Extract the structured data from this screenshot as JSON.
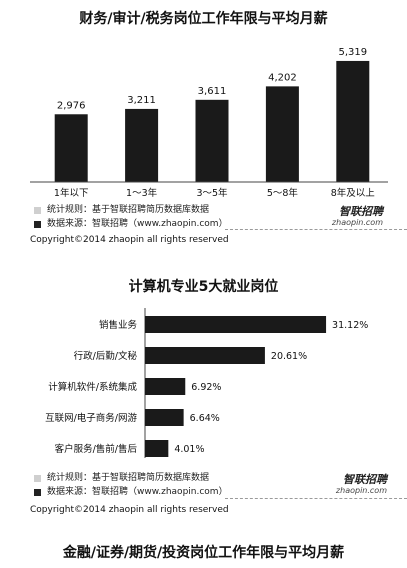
{
  "chart_data": [
    {
      "type": "bar",
      "title": "财务/审计/税务岗位工作年限与平均月薪",
      "categories": [
        "1年以下",
        "1～3年",
        "3～5年",
        "5～8年",
        "8年及以上"
      ],
      "values": [
        2976,
        3211,
        3611,
        4202,
        5319
      ],
      "value_labels": [
        "2,976",
        "3,211",
        "3,611",
        "4,202",
        "5,319"
      ],
      "ylim": [
        0,
        5800
      ],
      "grid": false,
      "bar_color": "#1a1a1a"
    },
    {
      "type": "bar",
      "orientation": "horizontal",
      "title": "计算机专业5大就业岗位",
      "categories": [
        "销售业务",
        "行政/后勤/文秘",
        "计算机软件/系统集成",
        "互联网/电子商务/网游",
        "客户服务/售前/售后"
      ],
      "values": [
        31.12,
        20.61,
        6.92,
        6.64,
        4.01
      ],
      "value_labels": [
        "31.12%",
        "20.61%",
        "6.92%",
        "6.64%",
        "4.01%"
      ],
      "xlim": [
        0,
        33
      ],
      "grid": false,
      "bar_color": "#1a1a1a"
    }
  ],
  "section1": {
    "note_rule": "统计规则：基于智联招聘简历数据库数据",
    "note_source": "数据来源：智联招聘（www.zhaopin.com）",
    "copyright": "Copyright©2014 zhaopin all rights reserved",
    "brand": "智联招聘",
    "brand_sub": "zhaopin.com"
  },
  "section2": {
    "note_rule": "统计规则：基于智联招聘简历数据库数据",
    "note_source": "数据来源：智联招聘（www.zhaopin.com）",
    "copyright": "Copyright©2014 zhaopin all rights reserved",
    "brand": "智联招聘",
    "brand_sub": "zhaopin.com"
  },
  "section3": {
    "title": "金融/证券/期货/投资岗位工作年限与平均月薪"
  }
}
